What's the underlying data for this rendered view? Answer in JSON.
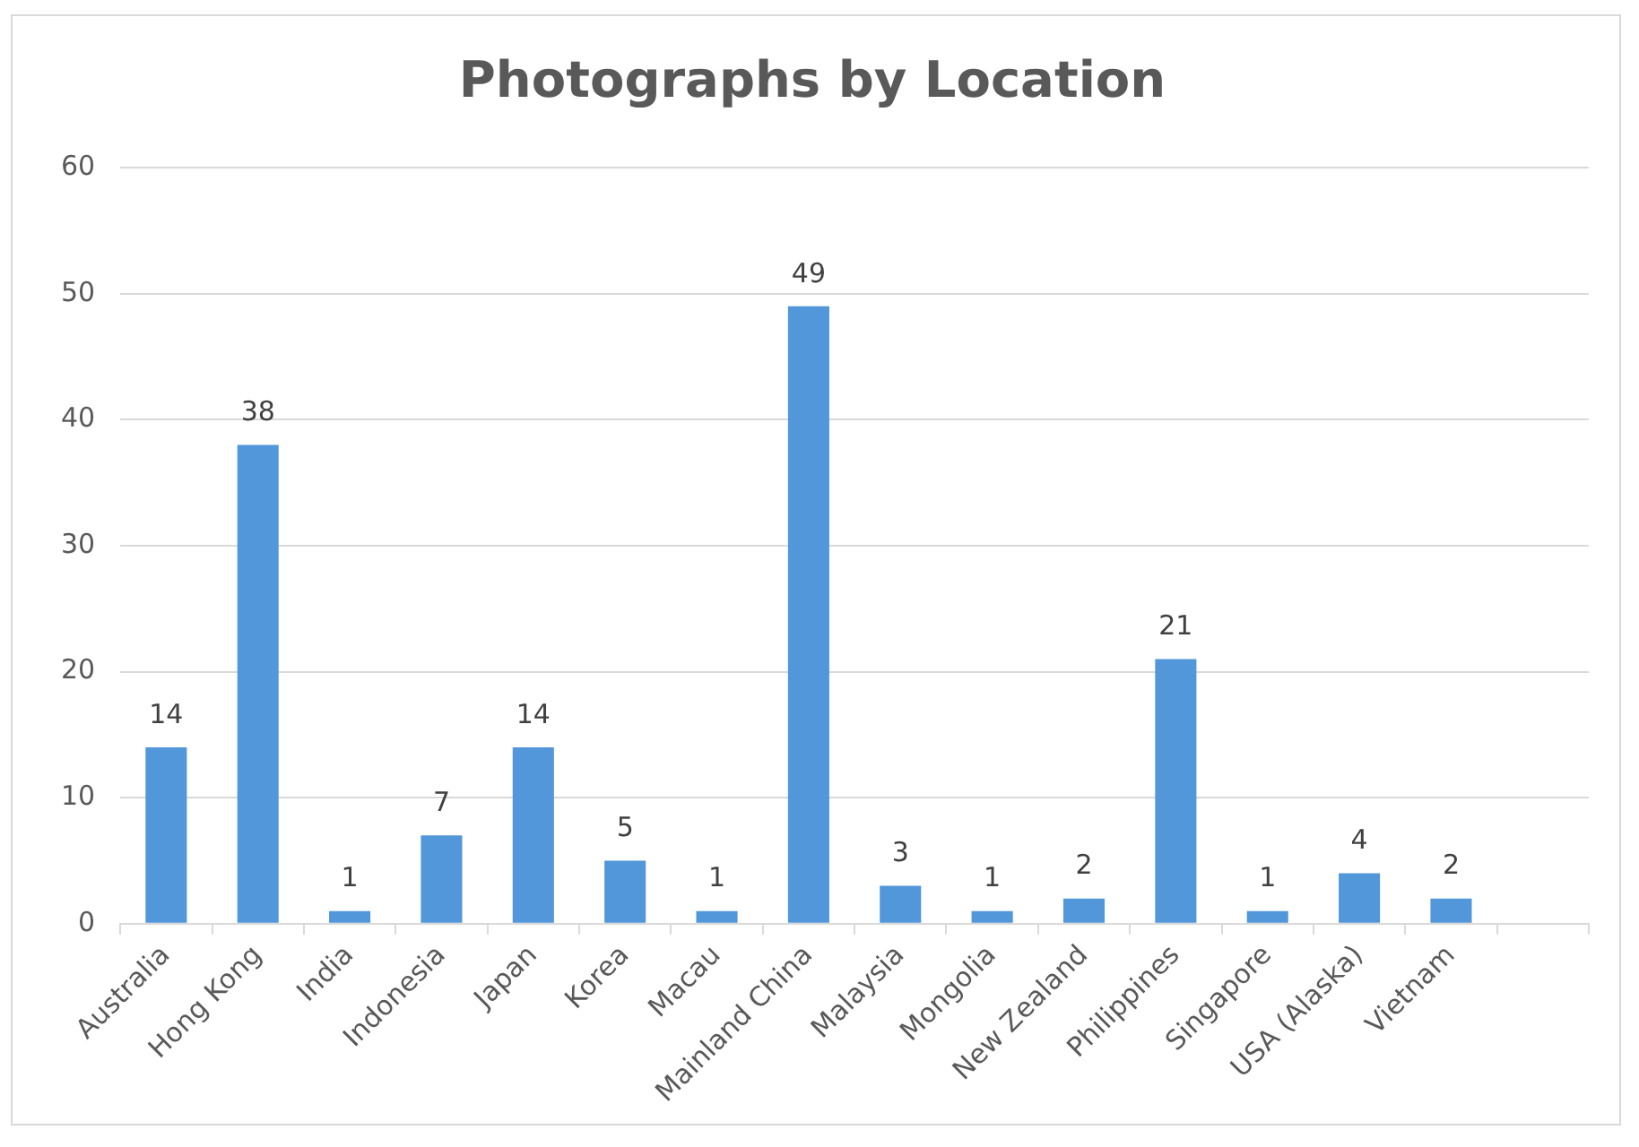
{
  "chart_data": {
    "type": "bar",
    "title": "Photographs by Location",
    "categories": [
      "Australia",
      "Hong Kong",
      "India",
      "Indonesia",
      "Japan",
      "Korea",
      "Macau",
      "Mainland China",
      "Malaysia",
      "Mongolia",
      "New Zealand",
      "Philippines",
      "Singapore",
      "USA (Alaska)",
      "Vietnam",
      null
    ],
    "values": [
      14,
      38,
      1,
      7,
      14,
      5,
      1,
      49,
      3,
      1,
      2,
      21,
      1,
      4,
      2,
      null
    ],
    "color": "#5197d9",
    "ylim": [
      0,
      60
    ],
    "yticks": [
      0,
      10,
      20,
      30,
      40,
      50,
      60
    ],
    "grid": "y",
    "data_labels": true,
    "legend": false
  }
}
